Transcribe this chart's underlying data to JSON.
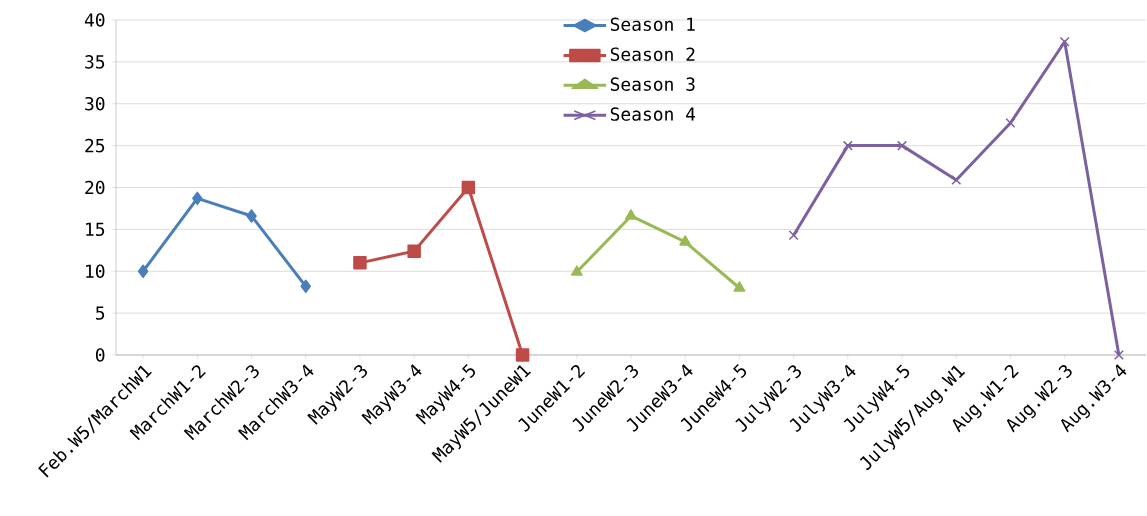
{
  "chart_data": {
    "type": "line",
    "categories": [
      "Feb.W5/MarchW1",
      "MarchW1-2",
      "MarchW2-3",
      "MarchW3-4",
      "MayW2-3",
      "MayW3-4",
      "MayW4-5",
      "MayW5/JuneW1",
      "JuneW1-2",
      "JuneW2-3",
      "JuneW3-4",
      "JuneW4-5",
      "JulyW2-3",
      "JulyW3-4",
      "JulyW4-5",
      "JulyW5/Aug.W1",
      "Aug.W1-2",
      "Aug.W2-3",
      "Aug.W3-4"
    ],
    "series": [
      {
        "name": "Season 1",
        "color": "#4a7ebb",
        "marker": "diamond",
        "values": [
          10.0,
          18.7,
          16.6,
          8.2,
          null,
          null,
          null,
          null,
          null,
          null,
          null,
          null,
          null,
          null,
          null,
          null,
          null,
          null,
          null
        ]
      },
      {
        "name": "Season 2",
        "color": "#be4b48",
        "marker": "square",
        "values": [
          null,
          null,
          null,
          null,
          11.0,
          12.4,
          20.0,
          0,
          null,
          null,
          null,
          null,
          null,
          null,
          null,
          null,
          null,
          null,
          null
        ]
      },
      {
        "name": "Season 3",
        "color": "#98b954",
        "marker": "triangle",
        "values": [
          null,
          null,
          null,
          null,
          null,
          null,
          null,
          null,
          9.9,
          16.6,
          13.5,
          8.0,
          null,
          null,
          null,
          null,
          null,
          null,
          null
        ]
      },
      {
        "name": "Season 4",
        "color": "#7d60a0",
        "marker": "cross",
        "values": [
          null,
          null,
          null,
          null,
          null,
          null,
          null,
          null,
          null,
          null,
          null,
          null,
          14.3,
          25.0,
          25.0,
          20.9,
          27.7,
          37.4,
          0
        ]
      }
    ],
    "ylim": [
      0,
      40
    ],
    "yticks": [
      0,
      5,
      10,
      15,
      20,
      25,
      30,
      35,
      40
    ],
    "grid": "y",
    "legend": "top",
    "line_style": "solid"
  }
}
